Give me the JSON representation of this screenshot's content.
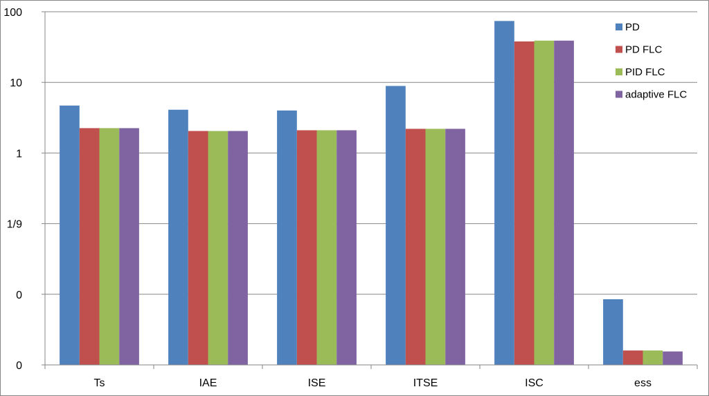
{
  "chart_data": {
    "type": "bar",
    "scale": "log",
    "grid": true,
    "legend_position": "top-right",
    "categories": [
      "Ts",
      "IAE",
      "ISE",
      "ITSE",
      "ISC",
      "ess"
    ],
    "y_ticks": [
      {
        "value": 0.001,
        "label": "0"
      },
      {
        "value": 0.01,
        "label": "0"
      },
      {
        "value": 0.1,
        "label": "1/9"
      },
      {
        "value": 1,
        "label": "1"
      },
      {
        "value": 10,
        "label": "10"
      },
      {
        "value": 100,
        "label": "100"
      }
    ],
    "ylim": [
      0.001,
      100
    ],
    "series": [
      {
        "name": "PD",
        "color": "#4F81BD",
        "values": [
          4.7,
          4.1,
          4.0,
          8.9,
          74,
          0.0085
        ]
      },
      {
        "name": "PD FLC",
        "color": "#C0504D",
        "values": [
          2.25,
          2.05,
          2.1,
          2.2,
          38,
          0.0016
        ]
      },
      {
        "name": "PID FLC",
        "color": "#9BBB59",
        "values": [
          2.25,
          2.05,
          2.1,
          2.2,
          39,
          0.0016
        ]
      },
      {
        "name": "adaptive FLC",
        "color": "#8064A2",
        "values": [
          2.25,
          2.05,
          2.1,
          2.2,
          39,
          0.00155
        ]
      }
    ]
  }
}
